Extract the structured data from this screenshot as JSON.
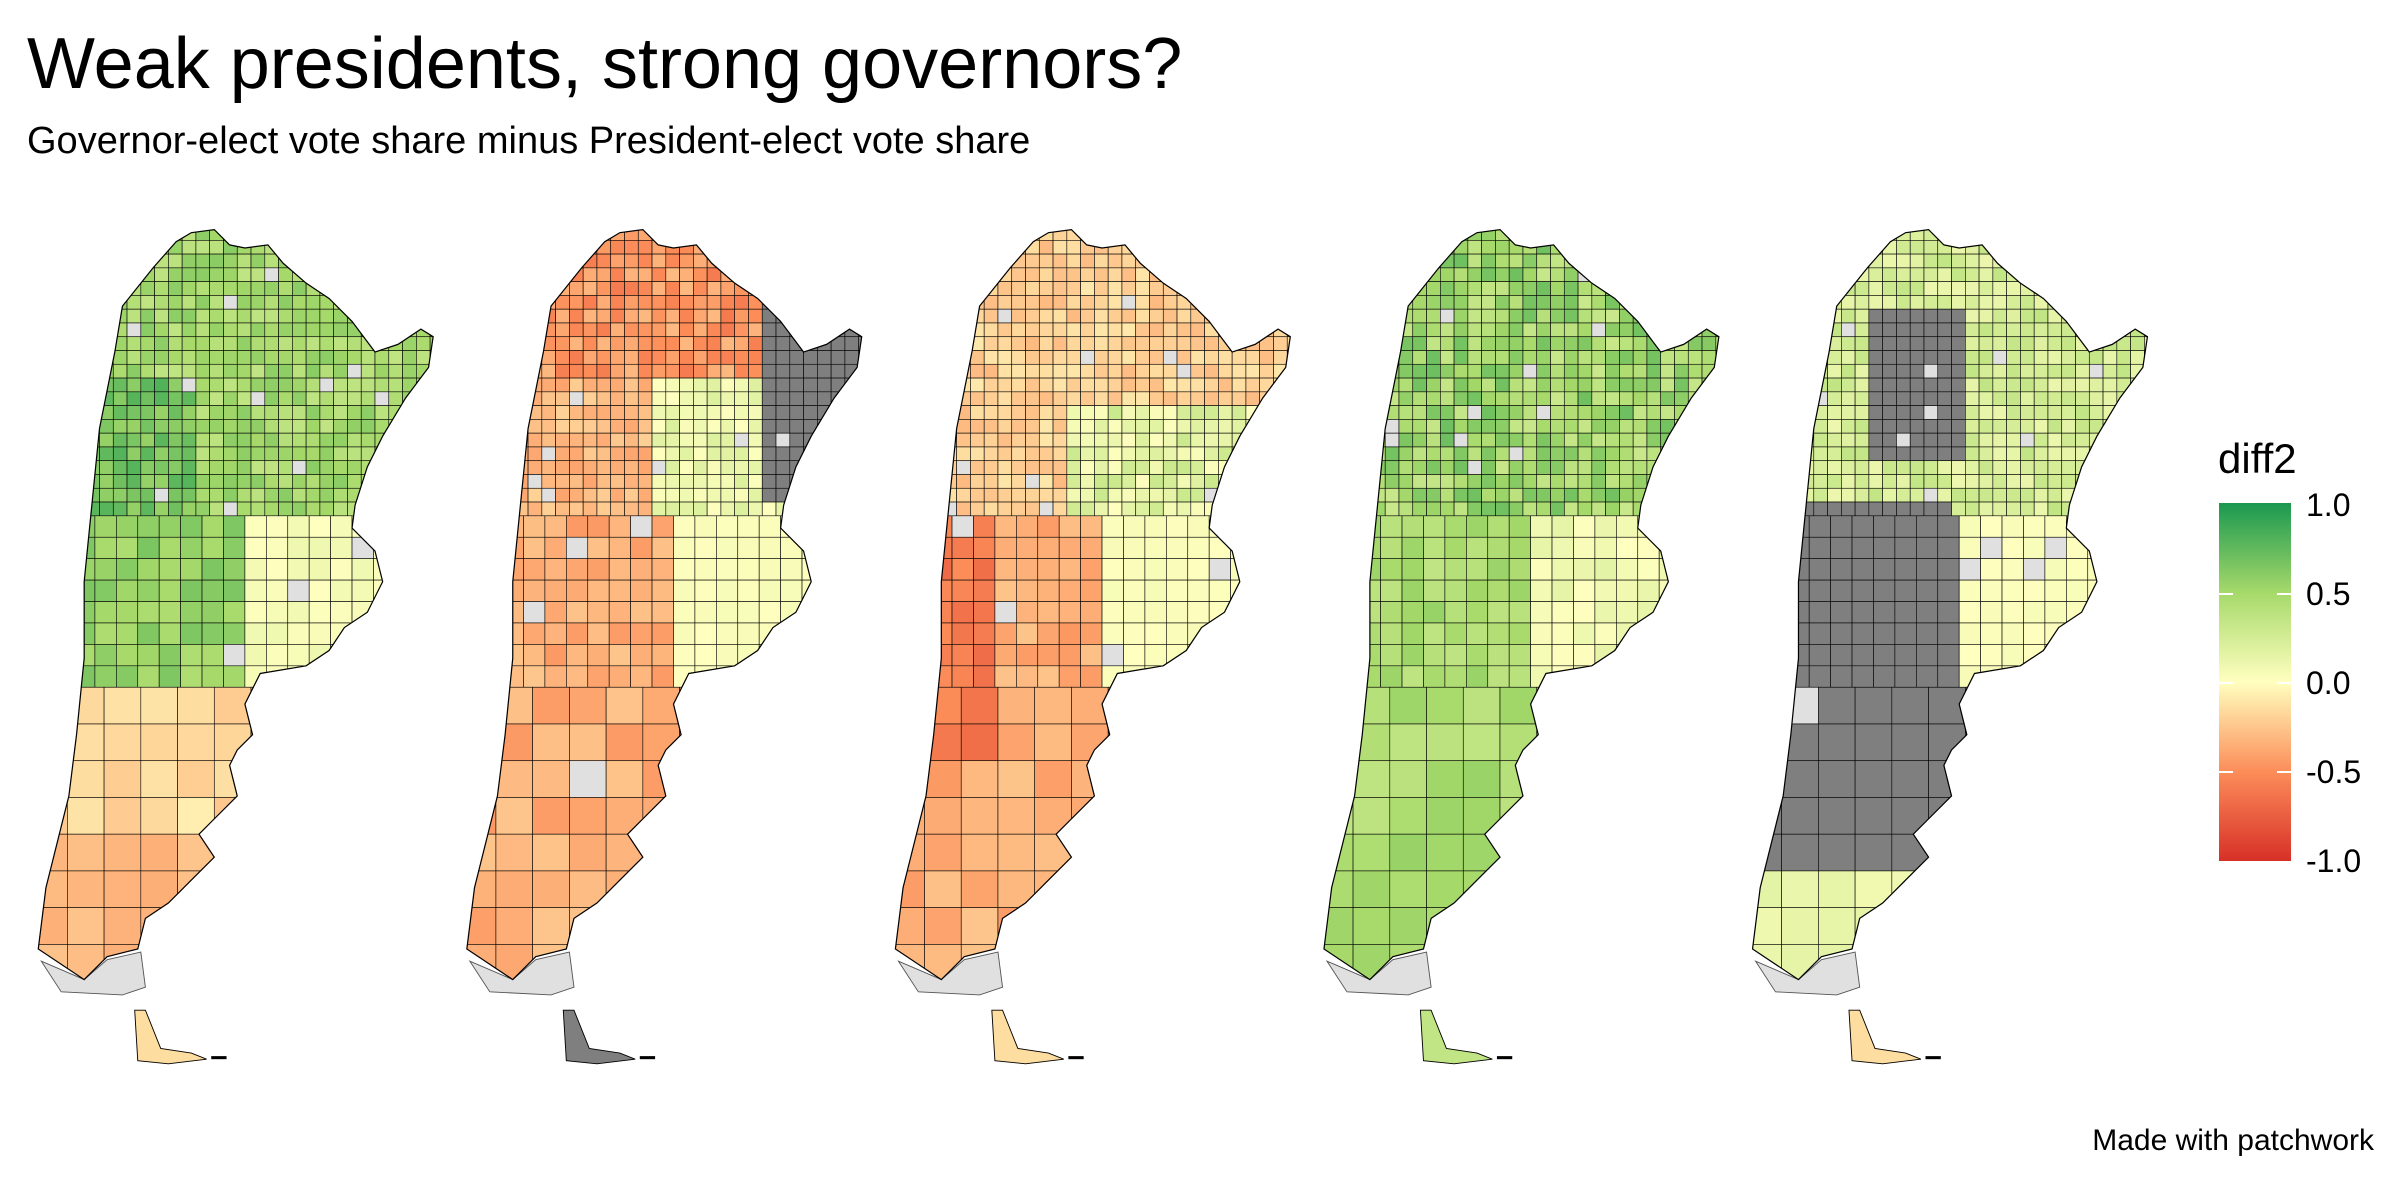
{
  "title": "Weak presidents, strong governors?",
  "subtitle": "Governor-elect vote share minus President-elect vote share",
  "caption": "Made with patchwork",
  "legend": {
    "title": "diff2",
    "breaks": [
      "1.0",
      "0.5",
      "0.0",
      "-0.5",
      "-1.0"
    ],
    "limits": [
      -1,
      1
    ],
    "colors": {
      "-1": "#d73027",
      "-0.5": "#fc8d59",
      "0": "#ffffbf",
      "0.5": "#a6d96a",
      "1": "#1a9850"
    },
    "na_color": "#7f7f7f",
    "missing_color": "#e0e0e0"
  },
  "chart_data": {
    "type": "choropleth",
    "panels": 5,
    "fill_variable": "diff2",
    "scale": "diverging red-yellow-green",
    "range": [
      -1,
      1
    ]
  }
}
